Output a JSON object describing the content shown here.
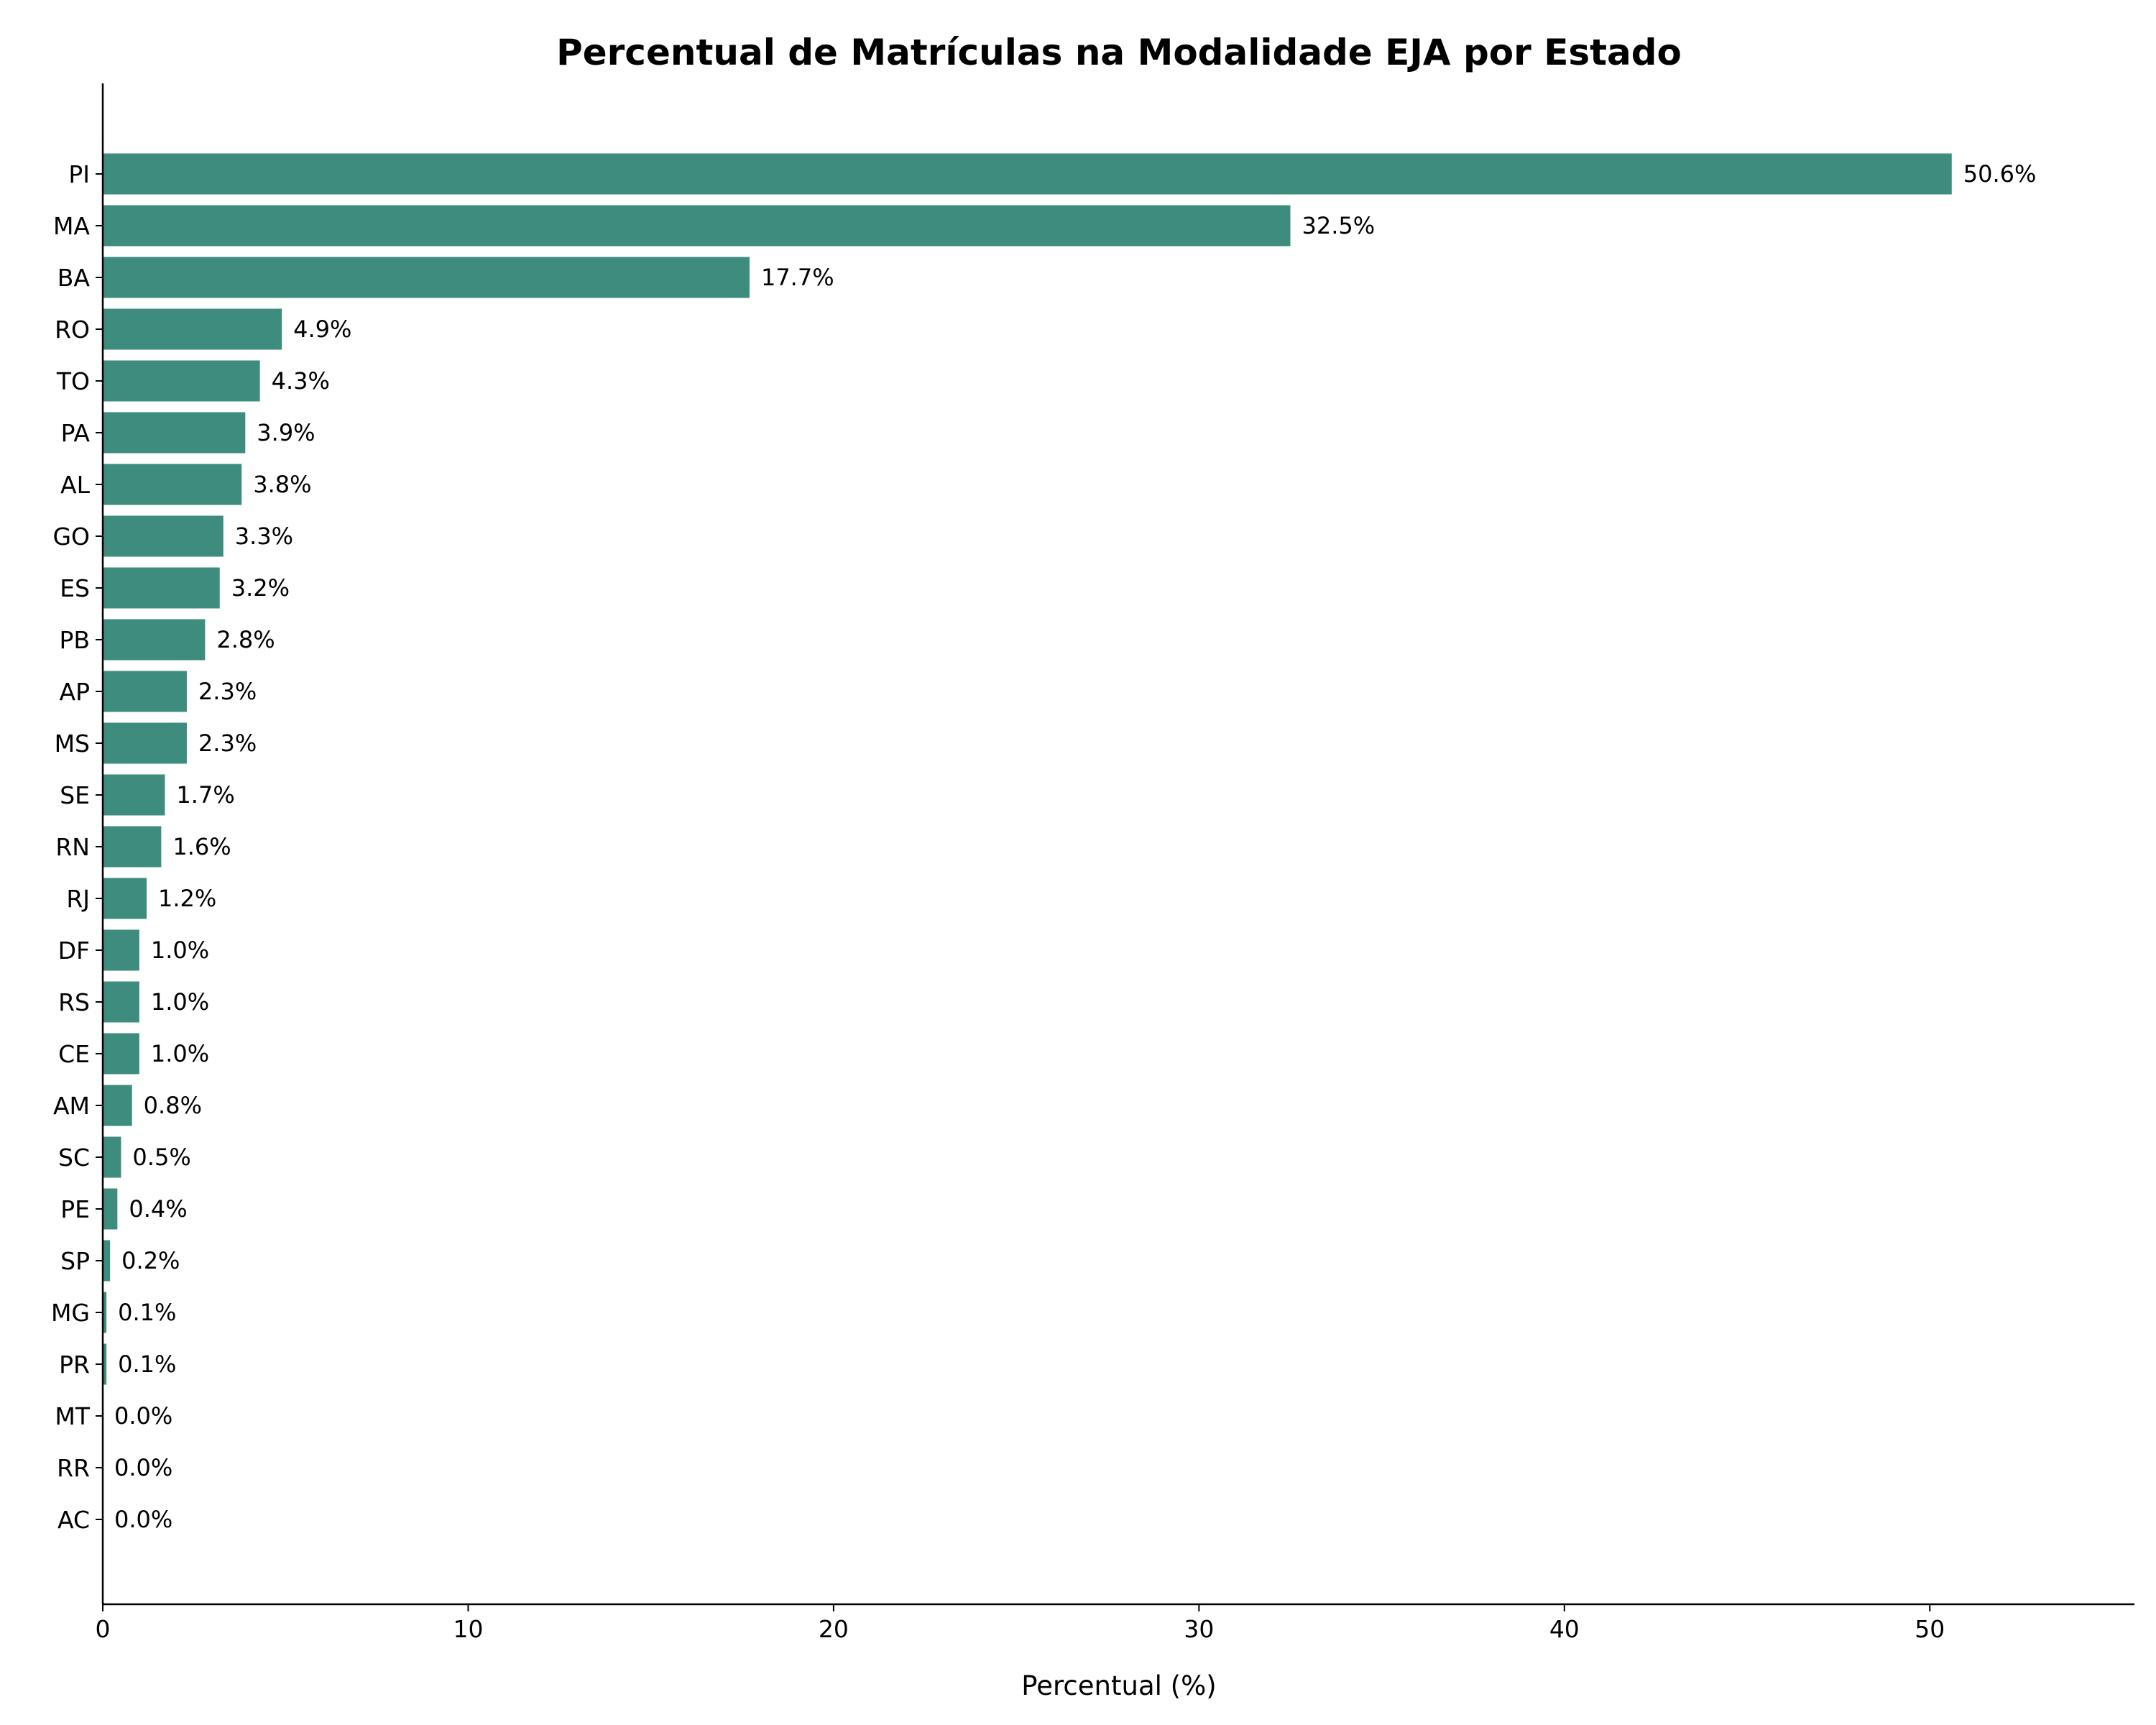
{
  "chart_data": {
    "type": "bar",
    "orientation": "horizontal",
    "title": "Percentual de Matrículas na Modalidade EJA por Estado",
    "xlabel": "Percentual (%)",
    "ylabel": "",
    "xlim": [
      0,
      55.6
    ],
    "x_ticks": [
      0,
      10,
      20,
      30,
      40,
      50
    ],
    "grid": false,
    "bar_color": "#3d8c7d",
    "categories": [
      "PI",
      "MA",
      "BA",
      "RO",
      "TO",
      "PA",
      "AL",
      "GO",
      "ES",
      "PB",
      "AP",
      "MS",
      "SE",
      "RN",
      "RJ",
      "DF",
      "RS",
      "CE",
      "AM",
      "SC",
      "PE",
      "SP",
      "MG",
      "PR",
      "MT",
      "RR",
      "AC"
    ],
    "values": [
      50.6,
      32.5,
      17.7,
      4.9,
      4.3,
      3.9,
      3.8,
      3.3,
      3.2,
      2.8,
      2.3,
      2.3,
      1.7,
      1.6,
      1.2,
      1.0,
      1.0,
      1.0,
      0.8,
      0.5,
      0.4,
      0.2,
      0.1,
      0.1,
      0.0,
      0.0,
      0.0
    ],
    "value_labels": [
      "50.6%",
      "32.5%",
      "17.7%",
      "4.9%",
      "4.3%",
      "3.9%",
      "3.8%",
      "3.3%",
      "3.2%",
      "2.8%",
      "2.3%",
      "2.3%",
      "1.7%",
      "1.6%",
      "1.2%",
      "1.0%",
      "1.0%",
      "1.0%",
      "0.8%",
      "0.5%",
      "0.4%",
      "0.2%",
      "0.1%",
      "0.1%",
      "0.0%",
      "0.0%",
      "0.0%"
    ]
  }
}
